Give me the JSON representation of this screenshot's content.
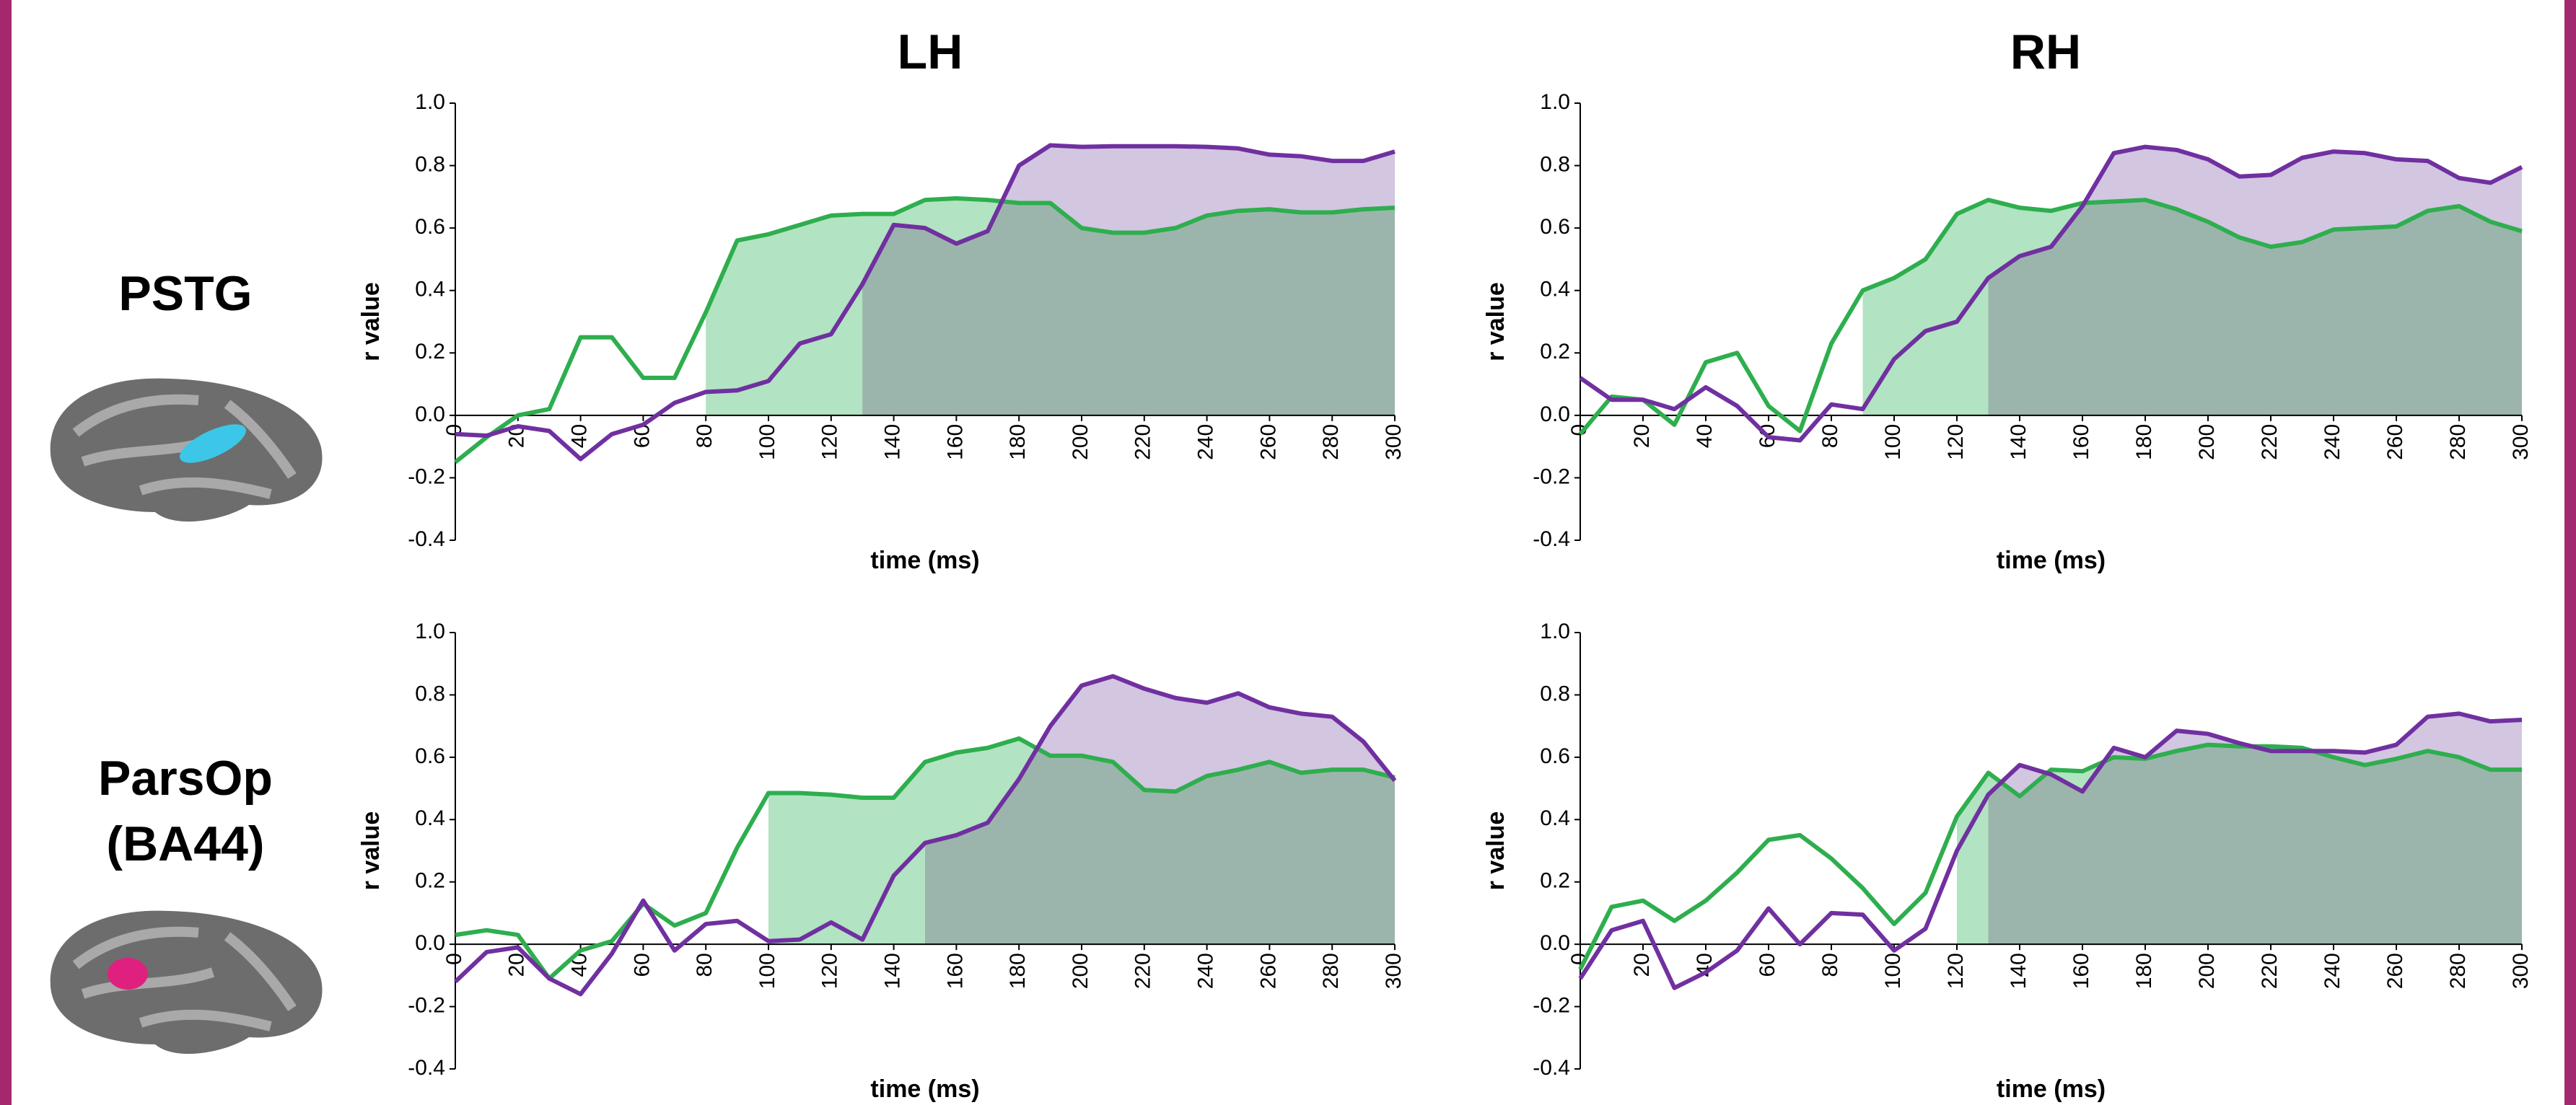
{
  "columns": [
    "LH",
    "RH"
  ],
  "rows": [
    [
      "PSTG"
    ],
    [
      "ParsOp",
      "(BA44)"
    ]
  ],
  "chart_data": [
    {
      "type": "line",
      "xlabel": "time (ms)",
      "ylabel": "r value",
      "x": [
        0,
        10,
        20,
        30,
        40,
        50,
        60,
        70,
        80,
        90,
        100,
        110,
        120,
        130,
        140,
        150,
        160,
        170,
        180,
        190,
        200,
        210,
        220,
        230,
        240,
        250,
        260,
        270,
        280,
        290,
        300
      ],
      "xlim": [
        0,
        300
      ],
      "xticks": [
        0,
        20,
        40,
        60,
        80,
        100,
        120,
        140,
        160,
        180,
        200,
        220,
        240,
        260,
        280,
        300
      ],
      "ylim": [
        -0.4,
        1.0
      ],
      "yticks": [
        -0.4,
        -0.2,
        {
          "value": 0,
          "label": "0.0"
        },
        0.2,
        0.4,
        0.6,
        0.8,
        {
          "value": 1,
          "label": "1.0"
        }
      ],
      "series": [
        {
          "color": "#2eae4e",
          "fill": "#b2e3c2",
          "fill_from": 80,
          "values": [
            -0.15,
            -0.07,
            0.0,
            0.02,
            0.25,
            0.25,
            0.12,
            0.12,
            0.33,
            0.56,
            0.58,
            0.61,
            0.64,
            0.645,
            0.645,
            0.69,
            0.695,
            0.69,
            0.68,
            0.68,
            0.6,
            0.585,
            0.585,
            0.6,
            0.64,
            0.655,
            0.66,
            0.65,
            0.65,
            0.66,
            0.665
          ]
        },
        {
          "color": "#7030a0",
          "fill": "#d2c6e0",
          "fill_from": 130,
          "values": [
            -0.06,
            -0.065,
            -0.035,
            -0.05,
            -0.14,
            -0.06,
            -0.03,
            0.04,
            0.075,
            0.08,
            0.11,
            0.23,
            0.26,
            0.42,
            0.61,
            0.6,
            0.55,
            0.59,
            0.8,
            0.865,
            0.86,
            0.862,
            0.862,
            0.862,
            0.86,
            0.855,
            0.835,
            0.83,
            0.815,
            0.815,
            0.845
          ]
        }
      ]
    },
    {
      "type": "line",
      "xlabel": "time (ms)",
      "ylabel": "r value",
      "x": [
        0,
        10,
        20,
        30,
        40,
        50,
        60,
        70,
        80,
        90,
        100,
        110,
        120,
        130,
        140,
        150,
        160,
        170,
        180,
        190,
        200,
        210,
        220,
        230,
        240,
        250,
        260,
        270,
        280,
        290,
        300
      ],
      "xlim": [
        0,
        300
      ],
      "xticks": [
        0,
        20,
        40,
        60,
        80,
        100,
        120,
        140,
        160,
        180,
        200,
        220,
        240,
        260,
        280,
        300
      ],
      "ylim": [
        -0.4,
        1.0
      ],
      "yticks": [
        -0.4,
        -0.2,
        {
          "value": 0,
          "label": "0.0"
        },
        0.2,
        0.4,
        0.6,
        0.8,
        {
          "value": 1,
          "label": "1.0"
        }
      ],
      "series": [
        {
          "color": "#2eae4e",
          "fill": "#b2e3c2",
          "fill_from": 90,
          "values": [
            -0.06,
            0.06,
            0.05,
            -0.03,
            0.17,
            0.2,
            0.03,
            -0.05,
            0.23,
            0.4,
            0.44,
            0.5,
            0.645,
            0.69,
            0.665,
            0.655,
            0.68,
            0.685,
            0.69,
            0.66,
            0.62,
            0.57,
            0.54,
            0.555,
            0.595,
            0.6,
            0.605,
            0.655,
            0.67,
            0.62,
            0.59
          ]
        },
        {
          "color": "#7030a0",
          "fill": "#d2c6e0",
          "fill_from": 130,
          "values": [
            0.12,
            0.05,
            0.05,
            0.02,
            0.09,
            0.03,
            -0.07,
            -0.08,
            0.035,
            0.02,
            0.18,
            0.27,
            0.3,
            0.44,
            0.51,
            0.54,
            0.67,
            0.84,
            0.86,
            0.85,
            0.82,
            0.765,
            0.77,
            0.825,
            0.845,
            0.84,
            0.82,
            0.815,
            0.76,
            0.745,
            0.795
          ]
        }
      ]
    },
    {
      "type": "line",
      "xlabel": "time (ms)",
      "ylabel": "r value",
      "x": [
        0,
        10,
        20,
        30,
        40,
        50,
        60,
        70,
        80,
        90,
        100,
        110,
        120,
        130,
        140,
        150,
        160,
        170,
        180,
        190,
        200,
        210,
        220,
        230,
        240,
        250,
        260,
        270,
        280,
        290,
        300
      ],
      "xlim": [
        0,
        300
      ],
      "xticks": [
        0,
        20,
        40,
        60,
        80,
        100,
        120,
        140,
        160,
        180,
        200,
        220,
        240,
        260,
        280,
        300
      ],
      "ylim": [
        -0.4,
        1.0
      ],
      "yticks": [
        -0.4,
        -0.2,
        {
          "value": 0,
          "label": "0.0"
        },
        0.2,
        0.4,
        0.6,
        0.8,
        {
          "value": 1,
          "label": "1.0"
        }
      ],
      "series": [
        {
          "color": "#2eae4e",
          "fill": "#b2e3c2",
          "fill_from": 100,
          "values": [
            0.03,
            0.045,
            0.03,
            -0.11,
            -0.02,
            0.01,
            0.13,
            0.06,
            0.1,
            0.31,
            0.485,
            0.485,
            0.48,
            0.47,
            0.47,
            0.585,
            0.615,
            0.63,
            0.66,
            0.605,
            0.605,
            0.585,
            0.495,
            0.49,
            0.54,
            0.56,
            0.585,
            0.55,
            0.56,
            0.56,
            0.535
          ]
        },
        {
          "color": "#7030a0",
          "fill": "#d2c6e0",
          "fill_from": 150,
          "values": [
            -0.12,
            -0.025,
            -0.01,
            -0.11,
            -0.16,
            -0.03,
            0.14,
            -0.02,
            0.065,
            0.075,
            0.01,
            0.015,
            0.07,
            0.015,
            0.22,
            0.325,
            0.35,
            0.39,
            0.53,
            0.7,
            0.83,
            0.86,
            0.82,
            0.79,
            0.775,
            0.805,
            0.76,
            0.74,
            0.73,
            0.65,
            0.525
          ]
        }
      ]
    },
    {
      "type": "line",
      "xlabel": "time (ms)",
      "ylabel": "r value",
      "x": [
        0,
        10,
        20,
        30,
        40,
        50,
        60,
        70,
        80,
        90,
        100,
        110,
        120,
        130,
        140,
        150,
        160,
        170,
        180,
        190,
        200,
        210,
        220,
        230,
        240,
        250,
        260,
        270,
        280,
        290,
        300
      ],
      "xlim": [
        0,
        300
      ],
      "xticks": [
        0,
        20,
        40,
        60,
        80,
        100,
        120,
        140,
        160,
        180,
        200,
        220,
        240,
        260,
        280,
        300
      ],
      "ylim": [
        -0.4,
        1.0
      ],
      "yticks": [
        -0.4,
        -0.2,
        {
          "value": 0,
          "label": "0.0"
        },
        0.2,
        0.4,
        0.6,
        0.8,
        {
          "value": 1,
          "label": "1.0"
        }
      ],
      "series": [
        {
          "color": "#2eae4e",
          "fill": "#b2e3c2",
          "fill_from": 120,
          "values": [
            -0.08,
            0.12,
            0.14,
            0.075,
            0.14,
            0.23,
            0.335,
            0.35,
            0.275,
            0.18,
            0.065,
            0.165,
            0.41,
            0.55,
            0.475,
            0.56,
            0.555,
            0.6,
            0.595,
            0.62,
            0.64,
            0.635,
            0.635,
            0.63,
            0.6,
            0.575,
            0.595,
            0.62,
            0.6,
            0.56,
            0.56
          ]
        },
        {
          "color": "#7030a0",
          "fill": "#d2c6e0",
          "fill_from": 130,
          "values": [
            -0.11,
            0.045,
            0.075,
            -0.14,
            -0.09,
            -0.02,
            0.115,
            0.0,
            0.1,
            0.095,
            -0.02,
            0.05,
            0.3,
            0.48,
            0.575,
            0.545,
            0.49,
            0.63,
            0.6,
            0.685,
            0.675,
            0.645,
            0.62,
            0.62,
            0.62,
            0.615,
            0.64,
            0.73,
            0.74,
            0.715,
            0.72
          ]
        }
      ]
    }
  ]
}
